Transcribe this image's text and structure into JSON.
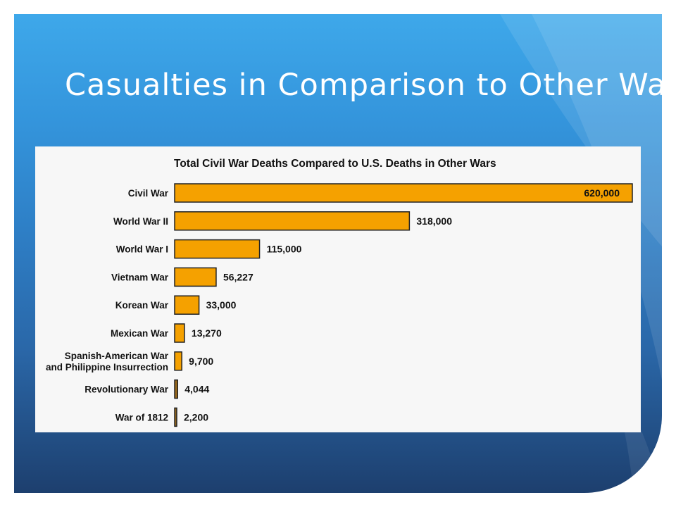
{
  "slide": {
    "title": "Casualties in Comparison to Other Wars"
  },
  "colors": {
    "bar_fill": "#f5a100",
    "bar_fill_small": "#9c6b1c",
    "background_top": "#3ea8ea",
    "background_bottom": "#1d3f6e"
  },
  "chart_data": {
    "type": "bar",
    "orientation": "horizontal",
    "title": "Total Civil War Deaths Compared to U.S. Deaths in Other Wars",
    "categories": [
      [
        "Civil War"
      ],
      [
        "World War II"
      ],
      [
        "World War I"
      ],
      [
        "Vietnam War"
      ],
      [
        "Korean War"
      ],
      [
        "Mexican War"
      ],
      [
        "Spanish-American War",
        "and Philippine Insurrection"
      ],
      [
        "Revolutionary War"
      ],
      [
        "War of 1812"
      ]
    ],
    "values": [
      620000,
      318000,
      115000,
      56227,
      33000,
      13270,
      9700,
      4044,
      2200
    ],
    "data_labels": [
      "620,000",
      "318,000",
      "115,000",
      "56,227",
      "33,000",
      "13,270",
      "9,700",
      "4,044",
      "2,200"
    ],
    "xlim": [
      0,
      620000
    ],
    "grid": false,
    "legend": "none"
  }
}
